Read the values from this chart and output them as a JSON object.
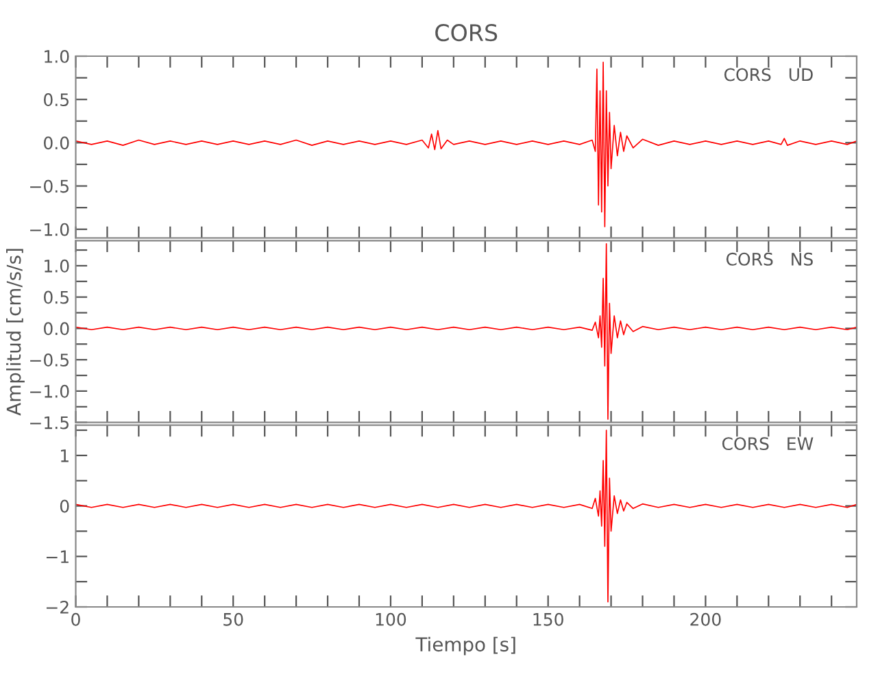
{
  "chart_data": [
    {
      "type": "line",
      "title": "CORS",
      "annotations": [
        "CORS   UD"
      ],
      "tick_labels": "y",
      "grid": false,
      "marker": "none",
      "line_style": "solid",
      "xlim": [
        0,
        248
      ],
      "ylim": [
        -1.1,
        1.0
      ],
      "xticks": [
        0,
        {
          "value": 10,
          "label": null
        },
        {
          "value": 20,
          "label": null
        },
        {
          "value": 30,
          "label": null
        },
        {
          "value": 40,
          "label": null
        },
        50,
        {
          "value": 60,
          "label": null
        },
        {
          "value": 70,
          "label": null
        },
        {
          "value": 80,
          "label": null
        },
        {
          "value": 90,
          "label": null
        },
        100,
        {
          "value": 110,
          "label": null
        },
        {
          "value": 120,
          "label": null
        },
        {
          "value": 130,
          "label": null
        },
        {
          "value": 140,
          "label": null
        },
        150,
        {
          "value": 160,
          "label": null
        },
        {
          "value": 170,
          "label": null
        },
        {
          "value": 180,
          "label": null
        },
        {
          "value": 190,
          "label": null
        },
        200,
        {
          "value": 210,
          "label": null
        },
        {
          "value": 220,
          "label": null
        },
        {
          "value": 230,
          "label": null
        },
        {
          "value": 240,
          "label": null
        }
      ],
      "yticks": [
        {
          "value": -1.0,
          "label": "−1.0"
        },
        {
          "value": -0.75,
          "label": null
        },
        {
          "value": -0.5,
          "label": "−0.5"
        },
        {
          "value": -0.25,
          "label": null
        },
        {
          "value": 0.0,
          "label": "0.0"
        },
        {
          "value": 0.25,
          "label": null
        },
        {
          "value": 0.5,
          "label": "0.5"
        },
        {
          "value": 0.75,
          "label": null
        },
        {
          "value": 1.0,
          "label": "1.0"
        }
      ],
      "series": [
        {
          "color": "#ff0000",
          "x": [
            0,
            5,
            10,
            15,
            20,
            25,
            30,
            35,
            40,
            45,
            50,
            55,
            60,
            65,
            70,
            75,
            80,
            85,
            90,
            95,
            100,
            105,
            110,
            112,
            113,
            114,
            115,
            116,
            118,
            120,
            125,
            130,
            135,
            140,
            145,
            150,
            155,
            160,
            164,
            165,
            165.5,
            166,
            166.5,
            167,
            167.5,
            168,
            168.5,
            169,
            169.5,
            170,
            171,
            172,
            173,
            174,
            175,
            177,
            180,
            185,
            190,
            195,
            200,
            205,
            210,
            215,
            220,
            224,
            225,
            226,
            230,
            235,
            240,
            245,
            248
          ],
          "values": [
            0.02,
            -0.02,
            0.02,
            -0.03,
            0.03,
            -0.02,
            0.02,
            -0.02,
            0.02,
            -0.02,
            0.02,
            -0.02,
            0.02,
            -0.02,
            0.03,
            -0.03,
            0.02,
            -0.02,
            0.02,
            -0.02,
            0.02,
            -0.02,
            0.03,
            -0.06,
            0.1,
            -0.08,
            0.14,
            -0.07,
            0.03,
            -0.02,
            0.02,
            -0.02,
            0.02,
            -0.02,
            0.02,
            -0.02,
            0.02,
            -0.02,
            0.03,
            -0.1,
            0.85,
            -0.72,
            0.6,
            -0.8,
            0.93,
            -0.97,
            0.6,
            -0.5,
            0.35,
            -0.3,
            0.2,
            -0.15,
            0.12,
            -0.1,
            0.08,
            -0.06,
            0.04,
            -0.03,
            0.02,
            -0.02,
            0.02,
            -0.02,
            0.02,
            -0.02,
            0.02,
            -0.02,
            0.05,
            -0.03,
            0.02,
            -0.02,
            0.02,
            -0.02,
            0.02
          ]
        }
      ]
    },
    {
      "type": "line",
      "ylabel": "Amplitud [cm/s/s]",
      "annotations": [
        "CORS   NS"
      ],
      "tick_labels": "y",
      "grid": false,
      "marker": "none",
      "line_style": "solid",
      "xlim": [
        0,
        248
      ],
      "ylim": [
        -1.5,
        1.4
      ],
      "xticks": [
        0,
        {
          "value": 10,
          "label": null
        },
        {
          "value": 20,
          "label": null
        },
        {
          "value": 30,
          "label": null
        },
        {
          "value": 40,
          "label": null
        },
        50,
        {
          "value": 60,
          "label": null
        },
        {
          "value": 70,
          "label": null
        },
        {
          "value": 80,
          "label": null
        },
        {
          "value": 90,
          "label": null
        },
        100,
        {
          "value": 110,
          "label": null
        },
        {
          "value": 120,
          "label": null
        },
        {
          "value": 130,
          "label": null
        },
        {
          "value": 140,
          "label": null
        },
        150,
        {
          "value": 160,
          "label": null
        },
        {
          "value": 170,
          "label": null
        },
        {
          "value": 180,
          "label": null
        },
        {
          "value": 190,
          "label": null
        },
        200,
        {
          "value": 210,
          "label": null
        },
        {
          "value": 220,
          "label": null
        },
        {
          "value": 230,
          "label": null
        },
        {
          "value": 240,
          "label": null
        }
      ],
      "yticks": [
        {
          "value": -1.5,
          "label": "−1.5"
        },
        {
          "value": -1.25,
          "label": null
        },
        {
          "value": -1.0,
          "label": "−1.0"
        },
        {
          "value": -0.75,
          "label": null
        },
        {
          "value": -0.5,
          "label": "−0.5"
        },
        {
          "value": -0.25,
          "label": null
        },
        {
          "value": 0.0,
          "label": "0.0"
        },
        {
          "value": 0.25,
          "label": null
        },
        {
          "value": 0.5,
          "label": "0.5"
        },
        {
          "value": 0.75,
          "label": null
        },
        {
          "value": 1.0,
          "label": "1.0"
        },
        {
          "value": 1.25,
          "label": null
        }
      ],
      "series": [
        {
          "color": "#ff0000",
          "x": [
            0,
            5,
            10,
            15,
            20,
            25,
            30,
            35,
            40,
            45,
            50,
            55,
            60,
            65,
            70,
            75,
            80,
            85,
            90,
            95,
            100,
            105,
            110,
            115,
            120,
            125,
            130,
            135,
            140,
            145,
            150,
            155,
            160,
            164,
            165,
            166,
            166.5,
            167,
            167.5,
            168,
            168.5,
            169,
            169.5,
            170,
            171,
            172,
            173,
            174,
            175,
            177,
            180,
            185,
            190,
            195,
            200,
            205,
            210,
            215,
            220,
            225,
            230,
            235,
            240,
            245,
            248
          ],
          "values": [
            0.02,
            -0.02,
            0.02,
            -0.02,
            0.02,
            -0.02,
            0.02,
            -0.02,
            0.02,
            -0.02,
            0.02,
            -0.02,
            0.02,
            -0.02,
            0.02,
            -0.02,
            0.02,
            -0.02,
            0.02,
            -0.02,
            0.02,
            -0.02,
            0.02,
            -0.02,
            0.02,
            -0.02,
            0.02,
            -0.02,
            0.02,
            -0.02,
            0.02,
            -0.02,
            0.02,
            -0.03,
            0.1,
            -0.15,
            0.2,
            -0.3,
            0.8,
            -0.6,
            1.35,
            -1.45,
            0.4,
            -0.4,
            0.2,
            -0.15,
            0.12,
            -0.1,
            0.07,
            -0.05,
            0.03,
            -0.02,
            0.02,
            -0.02,
            0.02,
            -0.02,
            0.02,
            -0.02,
            0.02,
            -0.02,
            0.02,
            -0.02,
            0.02,
            -0.02,
            0.02
          ]
        }
      ]
    },
    {
      "type": "line",
      "xlabel": "Tiempo [s]",
      "annotations": [
        "CORS   EW"
      ],
      "grid": false,
      "marker": "none",
      "line_style": "solid",
      "xlim": [
        0,
        248
      ],
      "ylim": [
        -2,
        1.6
      ],
      "xticks": [
        0,
        {
          "value": 10,
          "label": null
        },
        {
          "value": 20,
          "label": null
        },
        {
          "value": 30,
          "label": null
        },
        {
          "value": 40,
          "label": null
        },
        50,
        {
          "value": 60,
          "label": null
        },
        {
          "value": 70,
          "label": null
        },
        {
          "value": 80,
          "label": null
        },
        {
          "value": 90,
          "label": null
        },
        100,
        {
          "value": 110,
          "label": null
        },
        {
          "value": 120,
          "label": null
        },
        {
          "value": 130,
          "label": null
        },
        {
          "value": 140,
          "label": null
        },
        150,
        {
          "value": 160,
          "label": null
        },
        {
          "value": 170,
          "label": null
        },
        {
          "value": 180,
          "label": null
        },
        {
          "value": 190,
          "label": null
        },
        200,
        {
          "value": 210,
          "label": null
        },
        {
          "value": 220,
          "label": null
        },
        {
          "value": 230,
          "label": null
        },
        {
          "value": 240,
          "label": null
        }
      ],
      "yticks": [
        {
          "value": -2,
          "label": "−2"
        },
        {
          "value": -1.5,
          "label": null
        },
        {
          "value": -1,
          "label": "−1"
        },
        {
          "value": -0.5,
          "label": null
        },
        0,
        {
          "value": 0.5,
          "label": null
        },
        1,
        {
          "value": 1.5,
          "label": null
        }
      ],
      "series": [
        {
          "color": "#ff0000",
          "x": [
            0,
            5,
            10,
            15,
            20,
            25,
            30,
            35,
            40,
            45,
            50,
            55,
            60,
            65,
            70,
            75,
            80,
            85,
            90,
            95,
            100,
            105,
            110,
            115,
            120,
            125,
            130,
            135,
            140,
            145,
            150,
            155,
            160,
            164,
            165,
            166,
            166.5,
            167,
            167.5,
            168,
            168.5,
            169,
            169.5,
            170,
            171,
            172,
            173,
            174,
            175,
            177,
            180,
            185,
            190,
            195,
            200,
            205,
            210,
            215,
            220,
            225,
            230,
            235,
            240,
            245,
            248
          ],
          "values": [
            0.03,
            -0.03,
            0.03,
            -0.03,
            0.03,
            -0.03,
            0.03,
            -0.03,
            0.03,
            -0.03,
            0.03,
            -0.03,
            0.03,
            -0.03,
            0.03,
            -0.03,
            0.03,
            -0.03,
            0.03,
            -0.03,
            0.03,
            -0.03,
            0.03,
            -0.03,
            0.03,
            -0.03,
            0.03,
            -0.03,
            0.03,
            -0.03,
            0.03,
            -0.03,
            0.03,
            -0.05,
            0.15,
            -0.2,
            0.3,
            -0.4,
            0.9,
            -0.8,
            1.5,
            -1.9,
            0.55,
            -0.5,
            0.2,
            -0.15,
            0.12,
            -0.1,
            0.07,
            -0.05,
            0.04,
            -0.03,
            0.03,
            -0.03,
            0.03,
            -0.03,
            0.03,
            -0.03,
            0.03,
            -0.03,
            0.03,
            -0.03,
            0.03,
            -0.03,
            0.03
          ]
        }
      ]
    }
  ]
}
